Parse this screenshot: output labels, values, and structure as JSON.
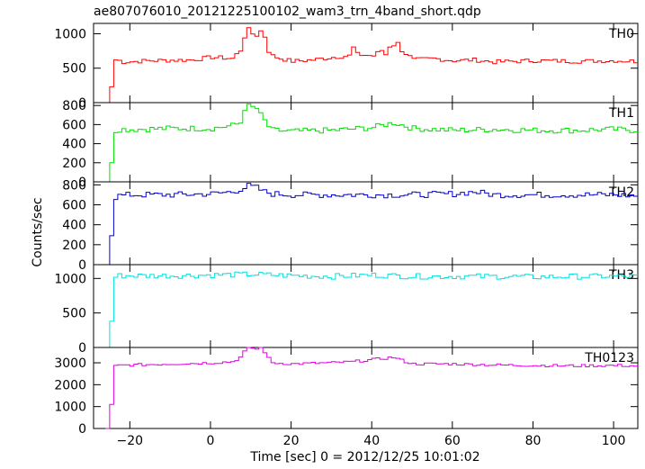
{
  "chart_data": {
    "type": "line",
    "title": "ae807076010_20121225100102_wam3_trn_4band_short.qdp",
    "xlabel": "Time [sec] 0 = 2012/12/25 10:01:02",
    "ylabel": "Counts/sec",
    "xlim": [
      -29,
      106
    ],
    "x_ticks": [
      -20,
      0,
      20,
      40,
      60,
      80,
      100
    ],
    "x_tick_labels": [
      "−20",
      "0",
      "20",
      "40",
      "60",
      "80",
      "100"
    ],
    "panels": [
      {
        "name": "TH0",
        "color": "#ff0000",
        "ylim": [
          0,
          1150
        ],
        "y_ticks": [
          0,
          500,
          1000
        ],
        "y_tick_labels": [
          "0",
          "500",
          "1000"
        ],
        "keypoints": [
          [
            -26,
            0
          ],
          [
            -25.5,
            0
          ],
          [
            -25,
            230
          ],
          [
            -24.5,
            620
          ],
          [
            -23.5,
            620
          ],
          [
            -22,
            590
          ],
          [
            -15,
            610
          ],
          [
            -5,
            620
          ],
          [
            0,
            660
          ],
          [
            5,
            640
          ],
          [
            7,
            760
          ],
          [
            8,
            960
          ],
          [
            9,
            1060
          ],
          [
            10,
            1000
          ],
          [
            11,
            980
          ],
          [
            12,
            1040
          ],
          [
            13,
            960
          ],
          [
            14,
            750
          ],
          [
            15,
            680
          ],
          [
            17,
            640
          ],
          [
            20,
            600
          ],
          [
            25,
            620
          ],
          [
            30,
            660
          ],
          [
            34,
            680
          ],
          [
            35,
            800
          ],
          [
            36,
            700
          ],
          [
            40,
            680
          ],
          [
            42,
            760
          ],
          [
            43,
            700
          ],
          [
            44,
            820
          ],
          [
            46,
            860
          ],
          [
            47,
            760
          ],
          [
            50,
            620
          ],
          [
            55,
            640
          ],
          [
            60,
            610
          ],
          [
            65,
            620
          ],
          [
            70,
            590
          ],
          [
            75,
            600
          ],
          [
            80,
            610
          ],
          [
            90,
            600
          ],
          [
            100,
            610
          ],
          [
            105,
            600
          ]
        ],
        "noise_amp": 30
      },
      {
        "name": "TH1",
        "color": "#00e000",
        "ylim": [
          0,
          830
        ],
        "y_ticks": [
          0,
          200,
          400,
          600,
          800
        ],
        "y_tick_labels": [
          "0",
          "200",
          "400",
          "600",
          "800"
        ],
        "keypoints": [
          [
            -26,
            0
          ],
          [
            -25.5,
            0
          ],
          [
            -25,
            200
          ],
          [
            -24.5,
            520
          ],
          [
            -23.5,
            550
          ],
          [
            -20,
            550
          ],
          [
            -10,
            560
          ],
          [
            0,
            560
          ],
          [
            5,
            590
          ],
          [
            7,
            620
          ],
          [
            8,
            770
          ],
          [
            9,
            790
          ],
          [
            10,
            780
          ],
          [
            11,
            770
          ],
          [
            12,
            700
          ],
          [
            13,
            640
          ],
          [
            14,
            580
          ],
          [
            15,
            540
          ],
          [
            20,
            530
          ],
          [
            30,
            540
          ],
          [
            40,
            570
          ],
          [
            45,
            620
          ],
          [
            50,
            560
          ],
          [
            60,
            540
          ],
          [
            70,
            550
          ],
          [
            80,
            540
          ],
          [
            90,
            540
          ],
          [
            100,
            550
          ],
          [
            105,
            540
          ]
        ],
        "noise_amp": 30
      },
      {
        "name": "TH2",
        "color": "#0000cd",
        "ylim": [
          0,
          830
        ],
        "y_ticks": [
          0,
          200,
          400,
          600,
          800
        ],
        "y_tick_labels": [
          "0",
          "200",
          "400",
          "600",
          "800"
        ],
        "keypoints": [
          [
            -26,
            0
          ],
          [
            -25.5,
            0
          ],
          [
            -25,
            290
          ],
          [
            -24.5,
            660
          ],
          [
            -23.5,
            690
          ],
          [
            -20,
            700
          ],
          [
            -10,
            700
          ],
          [
            0,
            710
          ],
          [
            5,
            730
          ],
          [
            8,
            770
          ],
          [
            9,
            790
          ],
          [
            11,
            770
          ],
          [
            13,
            730
          ],
          [
            15,
            710
          ],
          [
            20,
            700
          ],
          [
            30,
            700
          ],
          [
            40,
            700
          ],
          [
            50,
            700
          ],
          [
            60,
            710
          ],
          [
            65,
            730
          ],
          [
            70,
            700
          ],
          [
            80,
            700
          ],
          [
            90,
            700
          ],
          [
            100,
            700
          ],
          [
            105,
            690
          ]
        ],
        "noise_amp": 30
      },
      {
        "name": "TH3",
        "color": "#00e0e0",
        "ylim": [
          0,
          1200
        ],
        "y_ticks": [
          0,
          500,
          1000
        ],
        "y_tick_labels": [
          "0",
          "500",
          "1000"
        ],
        "keypoints": [
          [
            -26,
            0
          ],
          [
            -25.5,
            0
          ],
          [
            -25,
            380
          ],
          [
            -24.5,
            1000
          ],
          [
            -23.5,
            1040
          ],
          [
            -20,
            1040
          ],
          [
            -10,
            1040
          ],
          [
            0,
            1050
          ],
          [
            10,
            1060
          ],
          [
            20,
            1040
          ],
          [
            30,
            1030
          ],
          [
            40,
            1050
          ],
          [
            50,
            1030
          ],
          [
            60,
            1030
          ],
          [
            70,
            1030
          ],
          [
            80,
            1020
          ],
          [
            90,
            1030
          ],
          [
            100,
            1030
          ],
          [
            105,
            1030
          ]
        ],
        "noise_amp": 40
      },
      {
        "name": "TH0123",
        "color": "#e000e0",
        "ylim": [
          0,
          3700
        ],
        "y_ticks": [
          0,
          1000,
          2000,
          3000
        ],
        "y_tick_labels": [
          "0",
          "1000",
          "2000",
          "3000"
        ],
        "keypoints": [
          [
            -26,
            0
          ],
          [
            -25.5,
            0
          ],
          [
            -25,
            1100
          ],
          [
            -24.5,
            2800
          ],
          [
            -23.5,
            2880
          ],
          [
            -20,
            2900
          ],
          [
            -10,
            2950
          ],
          [
            0,
            3000
          ],
          [
            5,
            3050
          ],
          [
            7,
            3250
          ],
          [
            8,
            3500
          ],
          [
            9,
            3750
          ],
          [
            10,
            3680
          ],
          [
            11,
            3620
          ],
          [
            12,
            3700
          ],
          [
            13,
            3500
          ],
          [
            14,
            3200
          ],
          [
            15,
            3000
          ],
          [
            20,
            2950
          ],
          [
            30,
            3000
          ],
          [
            35,
            3050
          ],
          [
            40,
            3150
          ],
          [
            45,
            3250
          ],
          [
            48,
            3050
          ],
          [
            50,
            2950
          ],
          [
            60,
            2950
          ],
          [
            70,
            2900
          ],
          [
            80,
            2880
          ],
          [
            90,
            2860
          ],
          [
            100,
            2880
          ],
          [
            105,
            2860
          ]
        ],
        "noise_amp": 60
      }
    ]
  }
}
